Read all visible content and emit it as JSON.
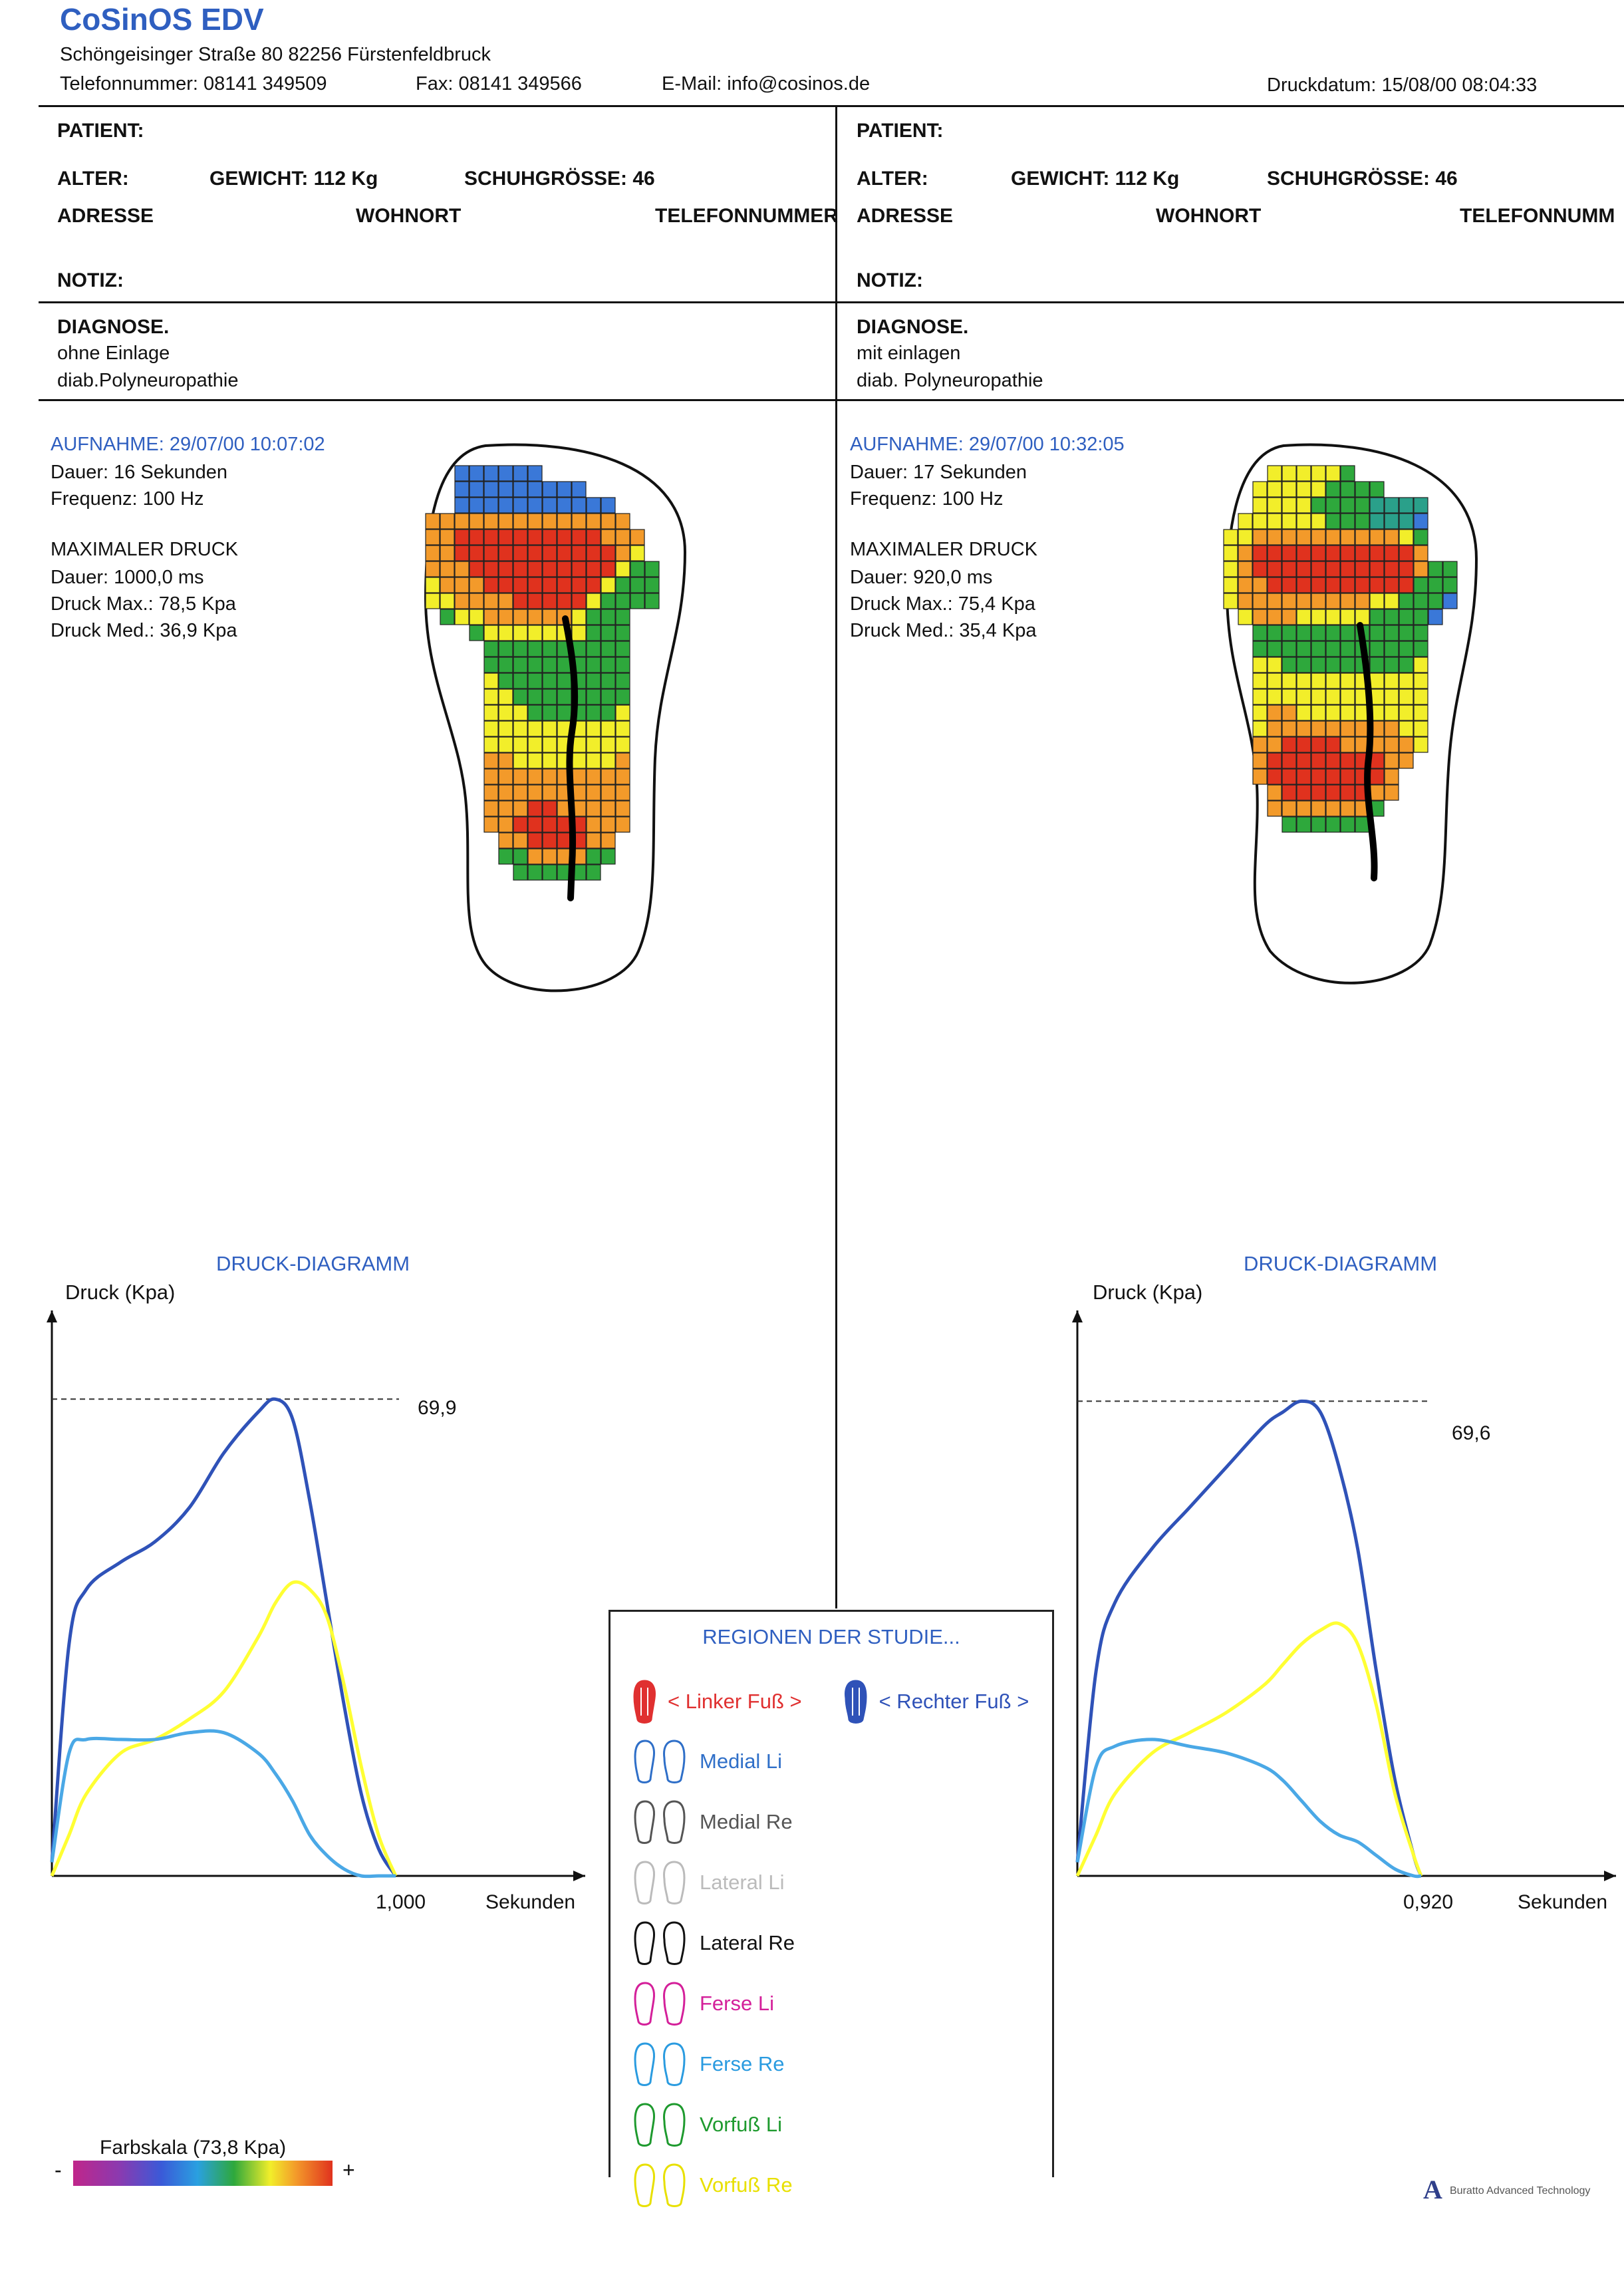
{
  "header": {
    "brand": "CoSinOS EDV",
    "address": "Schöngeisinger Straße 80    82256 Fürstenfeldbruck",
    "phone": "Telefonnummer:  08141 349509",
    "fax": "Fax:  08141 349566",
    "email": "E-Mail: info@cosinos.de",
    "print_date": "Druckdatum: 15/08/00 08:04:33"
  },
  "left": {
    "patient_label": "PATIENT:",
    "alter_label": "ALTER:",
    "gewicht": "GEWICHT: 112 Kg",
    "schuh": "SCHUHGRÖSSE: 46",
    "adresse_label": "ADRESSE",
    "wohnort_label": "WOHNORT",
    "telefon_label": "TELEFONNUMMER",
    "notiz_label": "NOTIZ:",
    "diagnose_label": "DIAGNOSE.",
    "diagnose_line1": "ohne Einlage",
    "diagnose_line2": "diab.Polyneuropathie",
    "aufnahme": "AUFNAHME: 29/07/00 10:07:02",
    "dauer": "Dauer: 16 Sekunden",
    "frequenz": "Frequenz: 100 Hz",
    "max_title": "MAXIMALER DRUCK",
    "max_dauer": "Dauer: 1000,0 ms",
    "druck_max": "Druck Max.: 78,5 Kpa",
    "druck_med": "Druck Med.: 36,9 Kpa"
  },
  "right": {
    "patient_label": "PATIENT:",
    "alter_label": "ALTER:",
    "gewicht": "GEWICHT: 112 Kg",
    "schuh": "SCHUHGRÖSSE: 46",
    "adresse_label": "ADRESSE",
    "wohnort_label": "WOHNORT",
    "telefon_label": "TELEFONNUMM",
    "notiz_label": "NOTIZ:",
    "diagnose_label": "DIAGNOSE.",
    "diagnose_line1": "mit einlagen",
    "diagnose_line2": "diab. Polyneuropathie",
    "aufnahme": "AUFNAHME: 29/07/00 10:32:05",
    "dauer": "Dauer: 17 Sekunden",
    "frequenz": "Frequenz: 100 Hz",
    "max_title": "MAXIMALER DRUCK",
    "max_dauer": "Dauer: 920,0 ms",
    "druck_max": "Druck Max.: 75,4 Kpa",
    "druck_med": "Druck Med.: 35,4 Kpa"
  },
  "legend": {
    "title": "REGIONEN DER STUDIE...",
    "left_foot": "< Linker Fuß >",
    "right_foot": "< Rechter Fuß >",
    "items": [
      "Medial Li",
      "Medial Re",
      "Lateral Li",
      "Lateral Re",
      "Ferse Li",
      "Ferse Re",
      "Vorfuß Li",
      "Vorfuß Re"
    ],
    "item_colors": [
      "#2f6fc8",
      "#555555",
      "#bbbbbb",
      "#111111",
      "#d4209a",
      "#2a9be0",
      "#1e9a2e",
      "#e8e000"
    ]
  },
  "colorscale": {
    "label": "Farbskala (73,8 Kpa)",
    "minus": "-",
    "plus": "+"
  },
  "footer_logo": "Buratto Advanced Technology",
  "chart_data": [
    {
      "type": "line",
      "title": "DRUCK-DIAGRAMM",
      "ylabel": "Druck (Kpa)",
      "xlabel": "Sekunden",
      "x_tick": "1,000",
      "peak_label": "69,9",
      "peak": 69.9,
      "xlim": [
        0,
        1.0
      ],
      "ylim": [
        0,
        75
      ],
      "x": [
        0,
        0.05,
        0.1,
        0.2,
        0.3,
        0.4,
        0.5,
        0.6,
        0.65,
        0.7,
        0.75,
        0.8,
        0.85,
        0.9,
        0.95,
        1.0
      ],
      "series": [
        {
          "color": "#2f52b8",
          "values": [
            2,
            34,
            42,
            46,
            49,
            54,
            62,
            68,
            69.9,
            67,
            55,
            40,
            25,
            12,
            4,
            0
          ]
        },
        {
          "color": "#ffff33",
          "values": [
            0,
            6,
            12,
            18,
            20,
            23,
            27,
            35,
            40,
            43,
            42,
            38,
            28,
            16,
            6,
            0
          ]
        },
        {
          "color": "#4aa8e6",
          "values": [
            2,
            18,
            20,
            20,
            20,
            21,
            21,
            18,
            15,
            11,
            6,
            3,
            1,
            0,
            0,
            0
          ]
        }
      ]
    },
    {
      "type": "line",
      "title": "DRUCK-DIAGRAMM",
      "ylabel": "Druck (Kpa)",
      "xlabel": "Sekunden",
      "x_tick": "0,920",
      "peak_label": "69,6",
      "peak": 69.6,
      "xlim": [
        0,
        0.92
      ],
      "ylim": [
        0,
        75
      ],
      "x": [
        0,
        0.05,
        0.1,
        0.2,
        0.3,
        0.4,
        0.5,
        0.55,
        0.6,
        0.65,
        0.7,
        0.75,
        0.8,
        0.85,
        0.9,
        0.92
      ],
      "series": [
        {
          "color": "#2f52b8",
          "values": [
            2,
            30,
            40,
            48,
            54,
            60,
            66,
            68,
            69.6,
            68,
            60,
            48,
            30,
            14,
            3,
            0
          ]
        },
        {
          "color": "#ffff33",
          "values": [
            0,
            6,
            12,
            18,
            21,
            24,
            28,
            31,
            34,
            36,
            37,
            34,
            25,
            12,
            3,
            0
          ]
        },
        {
          "color": "#4aa8e6",
          "values": [
            2,
            16,
            19,
            20,
            19,
            18,
            16,
            14,
            11,
            8,
            6,
            5,
            3,
            1,
            0,
            0
          ]
        }
      ]
    }
  ],
  "heatmaps": {
    "left_heatmap_rows": [
      "..BBBBBB........",
      "..BBBBBBBBB.....",
      "..BBBBBBBBBBB...",
      "OOOOOOOOOOOOOO..",
      "OORRRRRRRRRROOO.",
      "OORRRRRRRRRRROY.",
      "OOORRRRRRRRRRYGG",
      "YOOORRRRRRRRYGGG",
      "YYOOOORRRRRYGGGG",
      ".GYYOOOOOOYGGG..",
      "...GYYYYYYYGGG..",
      "....GGGGGGGGGG..",
      "....GGGGGGGGGG..",
      "....YGGGGGGGGG..",
      "....YYGGGGGGGG..",
      "....YYYGGGGGGY..",
      "....YYYYYYYYYY..",
      "....YYYYYYYYYY..",
      "....OOYYYYYYYO..",
      "....OOOOOOOOOO..",
      "....OOOOOOOOOO..",
      "....OOORROOOOO..",
      "....OORRRRROOO..",
      ".....OORRRROO...",
      ".....GGOOOOGG...",
      "......GGGGGG...."
    ],
    "right_heatmap_rows": [
      "...YYYYYG.......",
      "..YYYYYGGGG.....",
      "..YYYYGGGGTTTT..",
      ".YYYYYYGGGTTTB..",
      "YYOOOOOOOOOOYG..",
      "YORRRRRRRRRRRO..",
      "YORRRRRRRRRRROGG",
      "YOORRRRRRRRRRGGG",
      "YOOOOOOOOOYYGGGB",
      ".YOOOYYYYYGGGGB.",
      "..GGGGGGGGGGGG..",
      "..GGGGGGGGGGGG..",
      "..YYGGGGGGGGGY..",
      "..YYYYYYYYYYYY..",
      "..YYYYYYYYYYYY..",
      "..YOOYYYYYYYYY..",
      "..YOOOOOOOOOYY..",
      "..OORRRROOOOOY..",
      "..ORRRRRRRROO...",
      "..ORRRRRRRRO....",
      "...ORRRRRROO....",
      "...OOOOOOOG.....",
      "....GGGGGG......"
    ],
    "palette": {
      "B": "#3a78d8",
      "T": "#2aa08a",
      "G": "#2ea83c",
      "Y": "#f2ee2a",
      "O": "#f39a2a",
      "R": "#e0321e"
    }
  }
}
